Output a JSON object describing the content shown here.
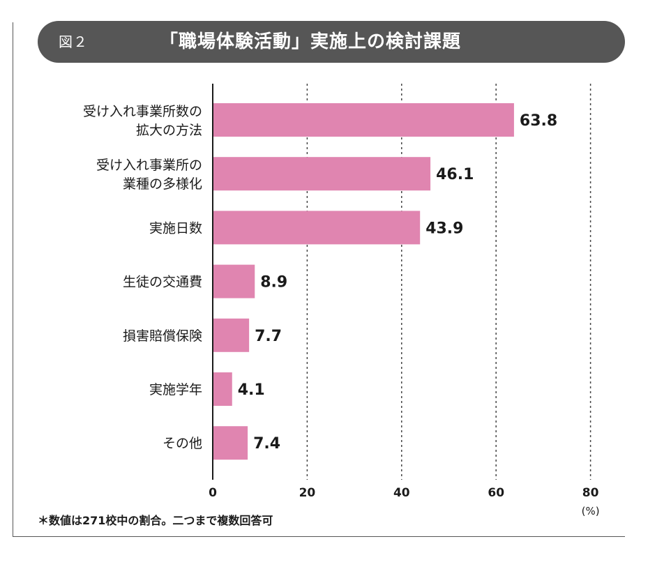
{
  "figure": {
    "label": "図２",
    "title": "「職場体験活動」実施上の検討課題"
  },
  "footnote": "＊数値は271校中の割合。二つまで複数回答可",
  "colors": {
    "bar": "#e085b0",
    "title_bg": "#565656",
    "grid": "#444444"
  },
  "chart_data": {
    "type": "bar",
    "orientation": "horizontal",
    "categories": [
      [
        "受け入れ事業所数の",
        "拡大の方法"
      ],
      [
        "受け入れ事業所の",
        "業種の多様化"
      ],
      [
        "実施日数"
      ],
      [
        "生徒の交通費"
      ],
      [
        "損害賠償保険"
      ],
      [
        "実施学年"
      ],
      [
        "その他"
      ]
    ],
    "values": [
      63.8,
      46.1,
      43.9,
      8.9,
      7.7,
      4.1,
      7.4
    ],
    "value_labels": [
      "63.8",
      "46.1",
      "43.9",
      "8.9",
      "7.7",
      "4.1",
      "7.4"
    ],
    "xlim": [
      0,
      80
    ],
    "xticks": [
      "0",
      "20",
      "40",
      "60",
      "80"
    ],
    "xticks_values": [
      0,
      20,
      40,
      60,
      80
    ],
    "x_unit": "(%)",
    "grid": "dashed vertical"
  }
}
